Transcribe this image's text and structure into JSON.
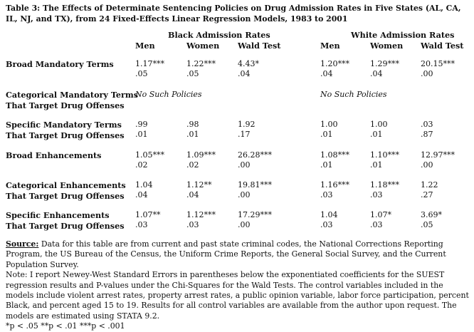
{
  "title": "Table 3:  The Effects of Determinate Sentencing Policies on Drug Admission Rates in Five States (AL, CA, IL, NJ, and TX), from 24 Fixed-Effects Linear Regression Models, 1983 to 2001",
  "groups": {
    "black": "Black Admission Rates",
    "white": "White Admission Rates"
  },
  "columns": [
    "Men",
    "Women",
    "Wald Test",
    "Men",
    "Women",
    "Wald Test"
  ],
  "rows": [
    {
      "label": "Broad Mandatory Terms",
      "cells": [
        [
          "1.17***",
          ".05"
        ],
        [
          "1.22***",
          ".05"
        ],
        [
          "4.43*",
          ".04"
        ],
        [
          "1.20***",
          ".04"
        ],
        [
          "1.29***",
          ".04"
        ],
        [
          "20.15***",
          ".00"
        ]
      ]
    },
    {
      "label": "Categorical Mandatory Terms\nThat Target Drug Offenses",
      "no_policy_black": "No Such Policies",
      "no_policy_white": "No Such Policies"
    },
    {
      "label": "Specific Mandatory Terms\nThat Target Drug Offenses",
      "cells": [
        [
          ".99",
          ".01"
        ],
        [
          ".98",
          ".01"
        ],
        [
          "1.92",
          ".17"
        ],
        [
          "1.00",
          ".01"
        ],
        [
          "1.00",
          ".01"
        ],
        [
          ".03",
          ".87"
        ]
      ]
    },
    {
      "label": "Broad Enhancements",
      "cells": [
        [
          "1.05***",
          ".02"
        ],
        [
          "1.09***",
          ".02"
        ],
        [
          "26.28***",
          ".00"
        ],
        [
          "1.08***",
          ".01"
        ],
        [
          "1.10***",
          ".01"
        ],
        [
          "12.97***",
          ".00"
        ]
      ]
    },
    {
      "label": "Categorical Enhancements\nThat Target Drug Offenses",
      "cells": [
        [
          "1.04",
          ".04"
        ],
        [
          "1.12**",
          ".04"
        ],
        [
          "19.81***",
          ".00"
        ],
        [
          "1.16***",
          ".03"
        ],
        [
          "1.18***",
          ".03"
        ],
        [
          "1.22",
          ".27"
        ]
      ]
    },
    {
      "label": "Specific Enhancements\nThat Target Drug Offenses",
      "cells": [
        [
          "1.07**",
          ".03"
        ],
        [
          "1.12***",
          ".03"
        ],
        [
          "17.29***",
          ".00"
        ],
        [
          "1.04",
          ".03"
        ],
        [
          "1.07*",
          ".03"
        ],
        [
          "3.69*",
          ".05"
        ]
      ]
    }
  ],
  "notes": {
    "source_label": "Source:",
    "source_text": " Data for this table are from current and past state criminal codes, the National Corrections Reporting Program, the US Bureau of the Census, the Uniform Crime Reports, the General Social Survey, and the Current Population Survey.",
    "note": "Note: I report Newey-West Standard Errors in parentheses below the exponentiated coefficients for the SUEST regression results and P-values under the Chi-Squares for the Wald Tests.  The control variables included in the models include violent arrest rates, property arrest rates, a public opinion variable, labor force participation, percent Black, and percent aged 15 to 19.  Results for all control variables are available from the author upon request.  The models are estimated using STATA 9.2.",
    "significance": "*p < .05  **p < .01  ***p < .001"
  }
}
